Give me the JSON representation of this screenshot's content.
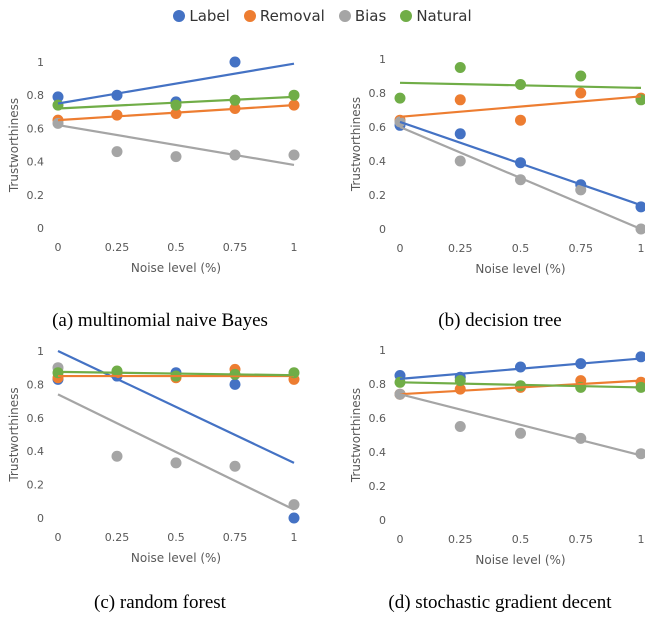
{
  "legend_colors": {
    "Label": "#4472C4",
    "Removal": "#ED7D31",
    "Bias": "#A5A5A5",
    "Natural": "#70AD47"
  },
  "chart_data": [
    {
      "type": "scatter",
      "caption": "(a) multinomial naive Bayes",
      "xlabel": "Noise level (%)",
      "ylabel": "Trustworthiness",
      "x": [
        0,
        0.25,
        0.5,
        0.75,
        1
      ],
      "x_tick_labels": [
        "0",
        "0.25",
        "0.5",
        "0.75",
        "1"
      ],
      "y_tick_labels": [
        "0",
        "0.2",
        "0.4",
        "0.6",
        "0.8",
        "1"
      ],
      "xlim": [
        0,
        1
      ],
      "ylim": [
        0,
        1
      ],
      "grid": false,
      "trendlines": true,
      "series": [
        {
          "name": "Label",
          "values": [
            0.79,
            0.8,
            0.76,
            1.0,
            null
          ],
          "trend": [
            0.75,
            0.99
          ]
        },
        {
          "name": "Removal",
          "values": [
            0.65,
            0.68,
            0.69,
            0.72,
            0.74
          ],
          "trend": [
            0.65,
            0.74
          ]
        },
        {
          "name": "Bias",
          "values": [
            0.63,
            0.46,
            0.43,
            0.44,
            0.44
          ],
          "trend": [
            0.62,
            0.38
          ]
        },
        {
          "name": "Natural",
          "values": [
            0.74,
            null,
            0.74,
            0.77,
            0.8
          ],
          "trend": [
            0.72,
            0.79
          ]
        }
      ]
    },
    {
      "type": "scatter",
      "caption": "(b) decision tree",
      "xlabel": "Noise level (%)",
      "ylabel": "Trustworthiness",
      "x": [
        0,
        0.25,
        0.5,
        0.75,
        1
      ],
      "x_tick_labels": [
        "0",
        "0.25",
        "0.5",
        "0.75",
        "1"
      ],
      "y_tick_labels": [
        "0",
        "0.2",
        "0.4",
        "0.6",
        "0.8",
        "1"
      ],
      "xlim": [
        0,
        1
      ],
      "ylim": [
        0,
        1
      ],
      "grid": false,
      "trendlines": true,
      "series": [
        {
          "name": "Label",
          "values": [
            0.61,
            0.56,
            0.39,
            0.26,
            0.13
          ],
          "trend": [
            0.63,
            0.14
          ]
        },
        {
          "name": "Removal",
          "values": [
            0.64,
            0.76,
            0.64,
            0.8,
            0.77
          ],
          "trend": [
            0.66,
            0.78
          ]
        },
        {
          "name": "Bias",
          "values": [
            0.63,
            0.4,
            0.29,
            0.23,
            0.0
          ],
          "trend": [
            0.6,
            0.0
          ]
        },
        {
          "name": "Natural",
          "values": [
            0.77,
            0.95,
            0.85,
            0.9,
            0.76
          ],
          "trend": [
            0.86,
            0.83
          ]
        }
      ]
    },
    {
      "type": "scatter",
      "caption": "(c) random forest",
      "xlabel": "Noise level (%)",
      "ylabel": "Trustworthiness",
      "x": [
        0,
        0.25,
        0.5,
        0.75,
        1
      ],
      "x_tick_labels": [
        "0",
        "0.25",
        "0.5",
        "0.75",
        "1"
      ],
      "y_tick_labels": [
        "0",
        "0.2",
        "0.4",
        "0.6",
        "0.8",
        "1"
      ],
      "xlim": [
        0,
        1
      ],
      "ylim": [
        0,
        1
      ],
      "grid": false,
      "trendlines": true,
      "series": [
        {
          "name": "Label",
          "values": [
            0.83,
            0.85,
            0.87,
            0.8,
            0.0
          ],
          "trend": [
            1.0,
            0.33
          ]
        },
        {
          "name": "Removal",
          "values": [
            0.84,
            0.87,
            0.84,
            0.89,
            0.83
          ],
          "trend": [
            0.85,
            0.85
          ]
        },
        {
          "name": "Bias",
          "values": [
            0.9,
            0.37,
            0.33,
            0.31,
            0.08
          ],
          "trend": [
            0.74,
            0.05
          ]
        },
        {
          "name": "Natural",
          "values": [
            0.87,
            0.88,
            0.85,
            0.86,
            0.87
          ],
          "trend": [
            0.875,
            0.855
          ]
        }
      ]
    },
    {
      "type": "scatter",
      "caption": "(d) stochastic gradient decent",
      "xlabel": "Noise level (%)",
      "ylabel": "Trustworthiness",
      "x": [
        0,
        0.25,
        0.5,
        0.75,
        1
      ],
      "x_tick_labels": [
        "0",
        "0.25",
        "0.5",
        "0.75",
        "1"
      ],
      "y_tick_labels": [
        "0",
        "0.2",
        "0.4",
        "0.6",
        "0.8",
        "1"
      ],
      "xlim": [
        0,
        1
      ],
      "ylim": [
        0,
        1
      ],
      "grid": false,
      "trendlines": true,
      "series": [
        {
          "name": "Label",
          "values": [
            0.85,
            0.84,
            0.9,
            0.92,
            0.96
          ],
          "trend": [
            0.83,
            0.95
          ]
        },
        {
          "name": "Removal",
          "values": [
            0.74,
            0.77,
            0.78,
            0.82,
            0.81
          ],
          "trend": [
            0.74,
            0.82
          ]
        },
        {
          "name": "Bias",
          "values": [
            0.74,
            0.55,
            0.51,
            0.48,
            0.39
          ],
          "trend": [
            0.74,
            0.38
          ]
        },
        {
          "name": "Natural",
          "values": [
            0.81,
            0.82,
            0.79,
            0.78,
            0.78
          ],
          "trend": [
            0.81,
            0.78
          ]
        }
      ]
    }
  ]
}
